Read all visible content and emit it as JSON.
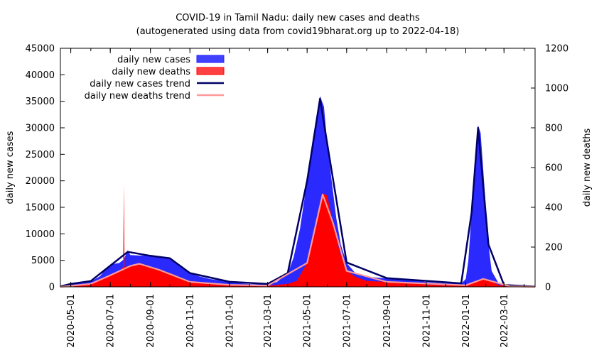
{
  "chart_data": {
    "type": "area",
    "title": "COVID-19 in Tamil Nadu: daily new cases and deaths",
    "subtitle": "(autogenerated using data from covid19bharat.org up to 2022-04-18)",
    "ylabel": "daily new cases",
    "y2label": "daily new deaths",
    "ylim": [
      0,
      45000
    ],
    "y2lim": [
      0,
      1200
    ],
    "xlim": [
      "2020-04-15",
      "2022-04-18"
    ],
    "x_ticks": [
      "2020-05-01",
      "2020-07-01",
      "2020-09-01",
      "2020-11-01",
      "2021-01-01",
      "2021-03-01",
      "2021-05-01",
      "2021-07-01",
      "2021-09-01",
      "2021-11-01",
      "2022-01-01",
      "2022-03-01"
    ],
    "y_ticks": [
      0,
      5000,
      10000,
      15000,
      20000,
      25000,
      30000,
      35000,
      40000,
      45000
    ],
    "y2_ticks": [
      0,
      200,
      400,
      600,
      800,
      1000,
      1200
    ],
    "legend_position": "top-left",
    "legend": [
      {
        "label": "daily new cases",
        "color": "#1f1fff",
        "kind": "box"
      },
      {
        "label": "daily new deaths",
        "color": "#ff0000",
        "kind": "box"
      },
      {
        "label": "daily new cases trend",
        "color": "#000066",
        "kind": "line"
      },
      {
        "label": "daily new deaths trend",
        "color": "#ff9999",
        "kind": "line"
      }
    ],
    "series": [
      {
        "name": "daily new cases",
        "axis": "y",
        "color": "#1f1fff",
        "points": [
          [
            "2020-04-15",
            50
          ],
          [
            "2020-05-01",
            600
          ],
          [
            "2020-05-20",
            700
          ],
          [
            "2020-06-01",
            1000
          ],
          [
            "2020-06-15",
            2000
          ],
          [
            "2020-06-25",
            3500
          ],
          [
            "2020-07-05",
            4300
          ],
          [
            "2020-07-15",
            4500
          ],
          [
            "2020-07-22",
            5200
          ],
          [
            "2020-07-28",
            6900
          ],
          [
            "2020-08-01",
            6000
          ],
          [
            "2020-08-15",
            5900
          ],
          [
            "2020-09-01",
            5950
          ],
          [
            "2020-09-15",
            5600
          ],
          [
            "2020-10-01",
            5400
          ],
          [
            "2020-10-10",
            4500
          ],
          [
            "2020-10-20",
            3500
          ],
          [
            "2020-11-01",
            2500
          ],
          [
            "2020-11-15",
            2000
          ],
          [
            "2020-12-01",
            1500
          ],
          [
            "2021-01-01",
            900
          ],
          [
            "2021-02-01",
            500
          ],
          [
            "2021-03-01",
            500
          ],
          [
            "2021-03-15",
            900
          ],
          [
            "2021-04-01",
            2500
          ],
          [
            "2021-04-10",
            5500
          ],
          [
            "2021-04-20",
            11000
          ],
          [
            "2021-05-01",
            20000
          ],
          [
            "2021-05-10",
            28000
          ],
          [
            "2021-05-17",
            33000
          ],
          [
            "2021-05-21",
            36000
          ],
          [
            "2021-05-27",
            34000
          ],
          [
            "2021-06-01",
            27000
          ],
          [
            "2021-06-08",
            20000
          ],
          [
            "2021-06-15",
            13000
          ],
          [
            "2021-06-22",
            8000
          ],
          [
            "2021-07-01",
            4500
          ],
          [
            "2021-07-15",
            2500
          ],
          [
            "2021-08-01",
            1900
          ],
          [
            "2021-09-01",
            1600
          ],
          [
            "2021-10-01",
            1500
          ],
          [
            "2021-11-01",
            900
          ],
          [
            "2021-12-01",
            700
          ],
          [
            "2021-12-25",
            600
          ],
          [
            "2022-01-01",
            1500
          ],
          [
            "2022-01-05",
            5000
          ],
          [
            "2022-01-10",
            14000
          ],
          [
            "2022-01-15",
            23000
          ],
          [
            "2022-01-20",
            30500
          ],
          [
            "2022-01-24",
            29000
          ],
          [
            "2022-01-28",
            22000
          ],
          [
            "2022-02-01",
            15000
          ],
          [
            "2022-02-05",
            8000
          ],
          [
            "2022-02-10",
            3000
          ],
          [
            "2022-02-20",
            800
          ],
          [
            "2022-03-01",
            300
          ],
          [
            "2022-04-18",
            30
          ]
        ]
      },
      {
        "name": "daily new deaths",
        "axis": "y2",
        "color": "#ff0000",
        "points": [
          [
            "2020-04-15",
            0
          ],
          [
            "2020-05-01",
            3
          ],
          [
            "2020-06-01",
            15
          ],
          [
            "2020-06-20",
            45
          ],
          [
            "2020-07-01",
            60
          ],
          [
            "2020-07-15",
            80
          ],
          [
            "2020-07-21",
            100
          ],
          [
            "2020-07-22",
            518
          ],
          [
            "2020-07-23",
            100
          ],
          [
            "2020-08-01",
            105
          ],
          [
            "2020-08-15",
            118
          ],
          [
            "2020-09-01",
            100
          ],
          [
            "2020-09-15",
            85
          ],
          [
            "2020-10-01",
            70
          ],
          [
            "2020-10-15",
            50
          ],
          [
            "2020-11-01",
            25
          ],
          [
            "2020-12-01",
            15
          ],
          [
            "2021-01-01",
            10
          ],
          [
            "2021-02-01",
            5
          ],
          [
            "2021-03-01",
            5
          ],
          [
            "2021-04-01",
            15
          ],
          [
            "2021-04-15",
            30
          ],
          [
            "2021-05-01",
            120
          ],
          [
            "2021-05-15",
            300
          ],
          [
            "2021-05-25",
            470
          ],
          [
            "2021-06-01",
            460
          ],
          [
            "2021-06-10",
            320
          ],
          [
            "2021-06-20",
            180
          ],
          [
            "2021-07-01",
            80
          ],
          [
            "2021-07-15",
            50
          ],
          [
            "2021-08-01",
            30
          ],
          [
            "2021-09-01",
            25
          ],
          [
            "2021-10-01",
            20
          ],
          [
            "2021-11-01",
            12
          ],
          [
            "2021-12-01",
            8
          ],
          [
            "2022-01-01",
            8
          ],
          [
            "2022-01-15",
            25
          ],
          [
            "2022-01-28",
            42
          ],
          [
            "2022-02-10",
            28
          ],
          [
            "2022-02-20",
            10
          ],
          [
            "2022-03-10",
            3
          ],
          [
            "2022-04-18",
            0
          ]
        ]
      },
      {
        "name": "daily new cases trend",
        "axis": "y",
        "color": "#000066",
        "points": [
          [
            "2020-04-15",
            100
          ],
          [
            "2020-05-01",
            550
          ],
          [
            "2020-06-01",
            1100
          ],
          [
            "2020-07-01",
            4000
          ],
          [
            "2020-07-28",
            6600
          ],
          [
            "2020-09-01",
            5850
          ],
          [
            "2020-10-01",
            5400
          ],
          [
            "2020-11-01",
            2600
          ],
          [
            "2021-01-01",
            950
          ],
          [
            "2021-03-01",
            550
          ],
          [
            "2021-04-01",
            2600
          ],
          [
            "2021-05-01",
            20000
          ],
          [
            "2021-05-21",
            35500
          ],
          [
            "2021-06-01",
            27000
          ],
          [
            "2021-07-01",
            4600
          ],
          [
            "2021-09-01",
            1650
          ],
          [
            "2021-12-25",
            650
          ],
          [
            "2022-01-10",
            14000
          ],
          [
            "2022-01-20",
            30000
          ],
          [
            "2022-02-05",
            8000
          ],
          [
            "2022-03-01",
            350
          ],
          [
            "2022-04-18",
            40
          ]
        ]
      },
      {
        "name": "daily new deaths trend",
        "axis": "y2",
        "color": "#ff9999",
        "points": [
          [
            "2020-04-15",
            0
          ],
          [
            "2020-06-01",
            15
          ],
          [
            "2020-07-01",
            58
          ],
          [
            "2020-08-01",
            105
          ],
          [
            "2020-08-15",
            116
          ],
          [
            "2020-09-15",
            85
          ],
          [
            "2020-11-01",
            25
          ],
          [
            "2021-01-01",
            10
          ],
          [
            "2021-03-01",
            6
          ],
          [
            "2021-05-01",
            120
          ],
          [
            "2021-05-25",
            465
          ],
          [
            "2021-06-10",
            320
          ],
          [
            "2021-07-01",
            80
          ],
          [
            "2021-09-01",
            25
          ],
          [
            "2022-01-01",
            8
          ],
          [
            "2022-01-28",
            40
          ],
          [
            "2022-03-10",
            3
          ],
          [
            "2022-04-18",
            0
          ]
        ]
      }
    ]
  }
}
